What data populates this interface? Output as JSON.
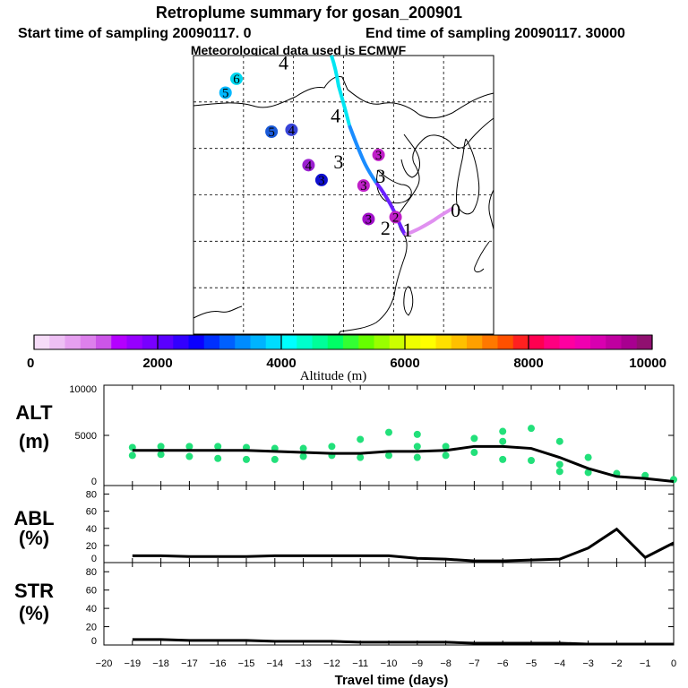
{
  "chart_data": [
    {
      "type": "map-trajectory",
      "title": "Retroplume summary for gosan_200901",
      "subtitle_start": "Start time of sampling 20090117.     0",
      "subtitle_end": "End time of sampling 20090117. 30000",
      "subtitle_met": "Meteorological data used is ECMWF",
      "day_markers": [
        {
          "label": "0",
          "lon": 126.2,
          "lat": 33.3
        },
        {
          "label": "1",
          "lon": 121.4,
          "lat": 31.2
        },
        {
          "label": "2",
          "lon": 119.2,
          "lat": 31.4
        },
        {
          "label": "3",
          "lon": 118.7,
          "lat": 37.0
        },
        {
          "label": "4",
          "lon": 114.2,
          "lat": 43.5
        },
        {
          "label": "4",
          "lon": 109.0,
          "lat": 49.2
        },
        {
          "label": "3",
          "lon": 114.5,
          "lat": 38.5
        }
      ],
      "cluster_markers": [
        {
          "label": "6",
          "lon": 104.3,
          "lat": 47.5,
          "color": "#00d8f0"
        },
        {
          "label": "5",
          "lon": 103.2,
          "lat": 46.0,
          "color": "#00b8ff"
        },
        {
          "label": "5",
          "lon": 107.8,
          "lat": 41.8,
          "color": "#1a5ad8"
        },
        {
          "label": "4",
          "lon": 109.8,
          "lat": 42.0,
          "color": "#3844d8"
        },
        {
          "label": "4",
          "lon": 111.5,
          "lat": 38.2,
          "color": "#9a20d0"
        },
        {
          "label": "3",
          "lon": 118.5,
          "lat": 39.3,
          "color": "#c020c8"
        },
        {
          "label": "3",
          "lon": 117.0,
          "lat": 36.0,
          "color": "#c020c8"
        },
        {
          "label": "3",
          "lon": 112.8,
          "lat": 36.6,
          "color": "#1010d0"
        },
        {
          "label": "2",
          "lon": 120.2,
          "lat": 32.6,
          "color": "#c020c8"
        },
        {
          "label": "3",
          "lon": 117.5,
          "lat": 32.4,
          "color": "#a010c8"
        }
      ],
      "colorbar": {
        "label": "Altitude (m)",
        "ticks": [
          "0",
          "2000",
          "4000",
          "6000",
          "8000",
          "10000"
        ],
        "colors": [
          "#f6dcf8",
          "#eec0f4",
          "#e6a0f0",
          "#dd80ec",
          "#cc55e8",
          "#b400ff",
          "#9600ff",
          "#7800ff",
          "#5a00ff",
          "#3200ff",
          "#0a00ff",
          "#0030ff",
          "#0060ff",
          "#008cff",
          "#00b4ff",
          "#00dcff",
          "#00ffff",
          "#00ffcc",
          "#00ff99",
          "#00ff66",
          "#33ff33",
          "#66ff00",
          "#99ff00",
          "#ccff00",
          "#eeff00",
          "#ffff00",
          "#ffe000",
          "#ffc000",
          "#ffa000",
          "#ff7800",
          "#ff5000",
          "#ff2020",
          "#ff0050",
          "#ff0080",
          "#ff00a0",
          "#f000b0",
          "#d800b0",
          "#c000a0",
          "#a80090",
          "#901070"
        ]
      }
    },
    {
      "type": "line",
      "ylabel": "ALT",
      "yunit": "(m)",
      "ylim": [
        0,
        10000
      ],
      "yticks": [
        "0",
        "5000",
        "10000"
      ],
      "x": [
        -19,
        -18,
        -17,
        -16,
        -15,
        -14,
        -13,
        -12,
        -11,
        -10,
        -9,
        -8,
        -7,
        -6,
        -5,
        -4,
        -3,
        -2,
        -1,
        0
      ],
      "mean": [
        3500,
        3500,
        3500,
        3500,
        3500,
        3400,
        3300,
        3200,
        3200,
        3400,
        3400,
        3500,
        3900,
        3900,
        3700,
        2800,
        1700,
        900,
        700,
        400
      ],
      "scatter": [
        {
          "x": -19,
          "y": 3800
        },
        {
          "x": -19,
          "y": 3000
        },
        {
          "x": -18,
          "y": 3900
        },
        {
          "x": -18,
          "y": 3100
        },
        {
          "x": -17,
          "y": 3900
        },
        {
          "x": -17,
          "y": 2900
        },
        {
          "x": -16,
          "y": 3900
        },
        {
          "x": -16,
          "y": 2700
        },
        {
          "x": -15,
          "y": 3800
        },
        {
          "x": -15,
          "y": 2600
        },
        {
          "x": -14,
          "y": 3700
        },
        {
          "x": -14,
          "y": 2600
        },
        {
          "x": -13,
          "y": 3700
        },
        {
          "x": -13,
          "y": 2900
        },
        {
          "x": -12,
          "y": 3900
        },
        {
          "x": -12,
          "y": 3000
        },
        {
          "x": -11,
          "y": 4600
        },
        {
          "x": -11,
          "y": 2800
        },
        {
          "x": -10,
          "y": 5300
        },
        {
          "x": -10,
          "y": 3000
        },
        {
          "x": -9,
          "y": 5100
        },
        {
          "x": -9,
          "y": 3900
        },
        {
          "x": -9,
          "y": 2800
        },
        {
          "x": -8,
          "y": 3900
        },
        {
          "x": -8,
          "y": 3000
        },
        {
          "x": -7,
          "y": 4700
        },
        {
          "x": -7,
          "y": 3300
        },
        {
          "x": -6,
          "y": 5400
        },
        {
          "x": -6,
          "y": 4400
        },
        {
          "x": -6,
          "y": 2600
        },
        {
          "x": -5,
          "y": 5700
        },
        {
          "x": -5,
          "y": 2500
        },
        {
          "x": -4,
          "y": 4400
        },
        {
          "x": -4,
          "y": 2100
        },
        {
          "x": -4,
          "y": 1400
        },
        {
          "x": -3,
          "y": 2800
        },
        {
          "x": -3,
          "y": 1300
        },
        {
          "x": -2,
          "y": 1200
        },
        {
          "x": -1,
          "y": 1000
        },
        {
          "x": 0,
          "y": 600
        }
      ]
    },
    {
      "type": "line",
      "ylabel": "ABL",
      "yunit": "(%)",
      "ylim": [
        0,
        90
      ],
      "yticks": [
        "0",
        "20",
        "40",
        "60",
        "80"
      ],
      "x": [
        -19,
        -18,
        -17,
        -16,
        -15,
        -14,
        -13,
        -12,
        -11,
        -10,
        -9,
        -8,
        -7,
        -6,
        -5,
        -4,
        -3,
        -2,
        -1,
        0
      ],
      "values": [
        8,
        8,
        7,
        7,
        7,
        8,
        8,
        8,
        8,
        8,
        5,
        4,
        2,
        2,
        3,
        4,
        17,
        39,
        6,
        23
      ]
    },
    {
      "type": "line",
      "ylabel": "STR",
      "yunit": "(%)",
      "ylim": [
        0,
        90
      ],
      "yticks": [
        "0",
        "20",
        "40",
        "60",
        "80"
      ],
      "xlabel": "Travel time (days)",
      "xticks": [
        "−20",
        "−19",
        "−18",
        "−17",
        "−16",
        "−15",
        "−14",
        "−13",
        "−12",
        "−11",
        "−10",
        "−9",
        "−8",
        "−7",
        "−6",
        "−5",
        "−4",
        "−3",
        "−2",
        "−1",
        "0"
      ],
      "x": [
        -19,
        -18,
        -17,
        -16,
        -15,
        -14,
        -13,
        -12,
        -11,
        -10,
        -9,
        -8,
        -7,
        -6,
        -5,
        -4,
        -3,
        -2,
        -1,
        0
      ],
      "values": [
        6,
        6,
        5,
        5,
        5,
        4,
        4,
        4,
        3,
        3,
        3,
        3,
        2,
        2,
        2,
        2,
        1,
        1,
        1,
        1
      ]
    }
  ]
}
